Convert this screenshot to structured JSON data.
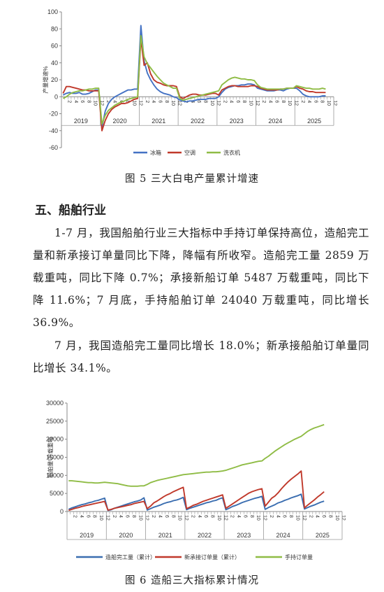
{
  "figure5": {
    "caption": "图 5  三大白电产量累计增速",
    "chart_data": {
      "type": "line",
      "ylabel": "产量增速%",
      "ylim": [
        -60,
        100
      ],
      "yticks": [
        -60,
        -40,
        -20,
        0,
        20,
        40,
        60,
        80,
        100
      ],
      "month_ticks": [
        "2",
        "4",
        "6",
        "8",
        "10",
        "12"
      ],
      "years": [
        "2019",
        "2020",
        "2021",
        "2022",
        "2023",
        "2024",
        "2025"
      ],
      "legend_position": "bottom",
      "series": [
        {
          "name": "冰箱",
          "color": "#4472c4",
          "values": [
            2,
            4,
            5,
            4,
            4,
            5,
            3,
            3,
            4,
            6,
            8,
            8,
            -36,
            -17,
            -8,
            -3,
            0,
            2,
            4,
            6,
            8,
            8,
            9,
            9,
            84,
            42,
            28,
            20,
            14,
            9,
            6,
            4,
            3,
            2,
            0,
            -1,
            -4,
            -5,
            -6,
            -5,
            -5,
            -4,
            -3,
            -3,
            -3,
            -2,
            -2,
            -2,
            0,
            5,
            9,
            11,
            12,
            13,
            13,
            14,
            14,
            15,
            15,
            14,
            10,
            9,
            8,
            7,
            7,
            7,
            8,
            8,
            7,
            9,
            10,
            10,
            10,
            7,
            3,
            1,
            0,
            0,
            0,
            0,
            1,
            1
          ]
        },
        {
          "name": "空调",
          "color": "#c0392b",
          "values": [
            4,
            12,
            12,
            11,
            10,
            9,
            8,
            8,
            7,
            7,
            7,
            7,
            -40,
            -28,
            -20,
            -15,
            -12,
            -10,
            -8,
            -8,
            -7,
            -5,
            -3,
            -2,
            68,
            37,
            40,
            27,
            20,
            17,
            16,
            14,
            13,
            13,
            13,
            12,
            0,
            -2,
            0,
            2,
            3,
            3,
            2,
            2,
            2,
            3,
            4,
            4,
            2,
            8,
            10,
            12,
            13,
            13,
            12,
            12,
            12,
            12,
            13,
            13,
            12,
            10,
            9,
            8,
            8,
            8,
            8,
            9,
            9,
            10,
            10,
            10,
            12,
            10,
            9,
            7,
            6,
            6,
            5,
            5,
            5,
            5
          ]
        },
        {
          "name": "洗衣机",
          "color": "#8fbc45",
          "values": [
            -2,
            0,
            3,
            5,
            6,
            7,
            7,
            8,
            9,
            9,
            10,
            10,
            -32,
            -22,
            -16,
            -13,
            -10,
            -8,
            -6,
            -5,
            -3,
            -2,
            -1,
            0,
            72,
            47,
            39,
            34,
            29,
            24,
            20,
            16,
            14,
            12,
            10,
            10,
            -2,
            -4,
            -3,
            -2,
            -1,
            0,
            1,
            2,
            3,
            4,
            5,
            6,
            7,
            14,
            17,
            20,
            22,
            23,
            22,
            21,
            21,
            20,
            20,
            19,
            14,
            11,
            10,
            9,
            9,
            9,
            9,
            9,
            9,
            10,
            10,
            10,
            13,
            12,
            11,
            10,
            10,
            9,
            9,
            9,
            10,
            9
          ]
        }
      ]
    }
  },
  "section": {
    "heading": "五、船舶行业",
    "paragraphs": [
      "1-7 月，我国船舶行业三大指标中手持订单保持高位，造船完工量和新承接订单量同比下降，降幅有所收窄。造船完工量 2859 万载重吨，同比下降 0.7%；承接新船订单 5487 万载重吨，同比下降 11.6%；7 月底，手持船舶订单 24040 万载重吨，同比增长 36.9%。",
      "7 月，我国造船完工量同比增长 18.0%；新承接船舶订单量同比增长 34.1%。"
    ]
  },
  "figure6": {
    "caption": "图 6  造船三大指标累计情况",
    "chart_data": {
      "type": "line",
      "ylabel": "船舶量\\万载重吨",
      "ylim": [
        0,
        30000
      ],
      "yticks": [
        0,
        5000,
        10000,
        15000,
        20000,
        25000,
        30000
      ],
      "month_ticks": [
        "2",
        "4",
        "6",
        "8",
        "10",
        "12"
      ],
      "years": [
        "2019",
        "2020",
        "2021",
        "2022",
        "2023",
        "2024",
        "2025"
      ],
      "legend_position": "bottom",
      "series": [
        {
          "name": "造船完工量（累计）",
          "color": "#3a6db0",
          "values": [
            600,
            1000,
            1300,
            1600,
            1900,
            2100,
            2400,
            2600,
            2900,
            3100,
            3400,
            3700,
            300,
            500,
            900,
            1200,
            1500,
            1800,
            2100,
            2400,
            2700,
            2900,
            3200,
            3800,
            400,
            800,
            1200,
            1500,
            1800,
            2200,
            2500,
            2700,
            3000,
            3200,
            3500,
            3900,
            500,
            900,
            1200,
            1500,
            1800,
            2100,
            2400,
            2600,
            2900,
            3100,
            3500,
            3800,
            500,
            900,
            1400,
            1700,
            2100,
            2500,
            2800,
            3100,
            3400,
            3700,
            3900,
            4200,
            600,
            1100,
            1500,
            1900,
            2400,
            2700,
            3100,
            3400,
            3800,
            4100,
            4400,
            4800,
            700,
            1100,
            1500,
            1800,
            2200,
            2600,
            2859
          ]
        },
        {
          "name": "新承接订单量（累计）",
          "color": "#c0392b",
          "values": [
            300,
            600,
            900,
            1100,
            1400,
            1600,
            1800,
            2000,
            2200,
            2400,
            2600,
            2800,
            400,
            600,
            900,
            1100,
            1300,
            1500,
            1700,
            1900,
            2200,
            2400,
            2600,
            2800,
            800,
            1500,
            2400,
            2900,
            3500,
            4100,
            4600,
            5000,
            5500,
            5900,
            6300,
            6700,
            800,
            1200,
            1700,
            2000,
            2400,
            2800,
            3100,
            3400,
            3700,
            4000,
            4300,
            4600,
            900,
            1500,
            2100,
            2700,
            3300,
            3900,
            4500,
            5100,
            5500,
            5800,
            6100,
            6300,
            1500,
            2600,
            3700,
            4300,
            5200,
            6300,
            7300,
            8200,
            9000,
            9700,
            10400,
            11200,
            1000,
            1800,
            2500,
            3200,
            4000,
            4700,
            5487
          ]
        },
        {
          "name": "手持订单量",
          "color": "#8fbc45",
          "values": [
            8500,
            8500,
            8400,
            8300,
            8200,
            8100,
            8000,
            8000,
            7900,
            7900,
            8000,
            8100,
            8000,
            7900,
            7800,
            7700,
            7500,
            7300,
            7100,
            7000,
            7000,
            7000,
            7100,
            7100,
            7500,
            8000,
            8300,
            8600,
            8800,
            9000,
            9200,
            9400,
            9600,
            9800,
            10000,
            10200,
            10300,
            10400,
            10500,
            10600,
            10700,
            10800,
            10900,
            10900,
            11000,
            11000,
            11100,
            11200,
            11400,
            11700,
            12000,
            12300,
            12600,
            12900,
            13100,
            13300,
            13500,
            13700,
            13900,
            14000,
            14700,
            15300,
            16000,
            16700,
            17300,
            17900,
            18500,
            19000,
            19500,
            20000,
            20400,
            20800,
            21500,
            22200,
            22700,
            23100,
            23400,
            23700,
            24040
          ]
        }
      ]
    }
  }
}
